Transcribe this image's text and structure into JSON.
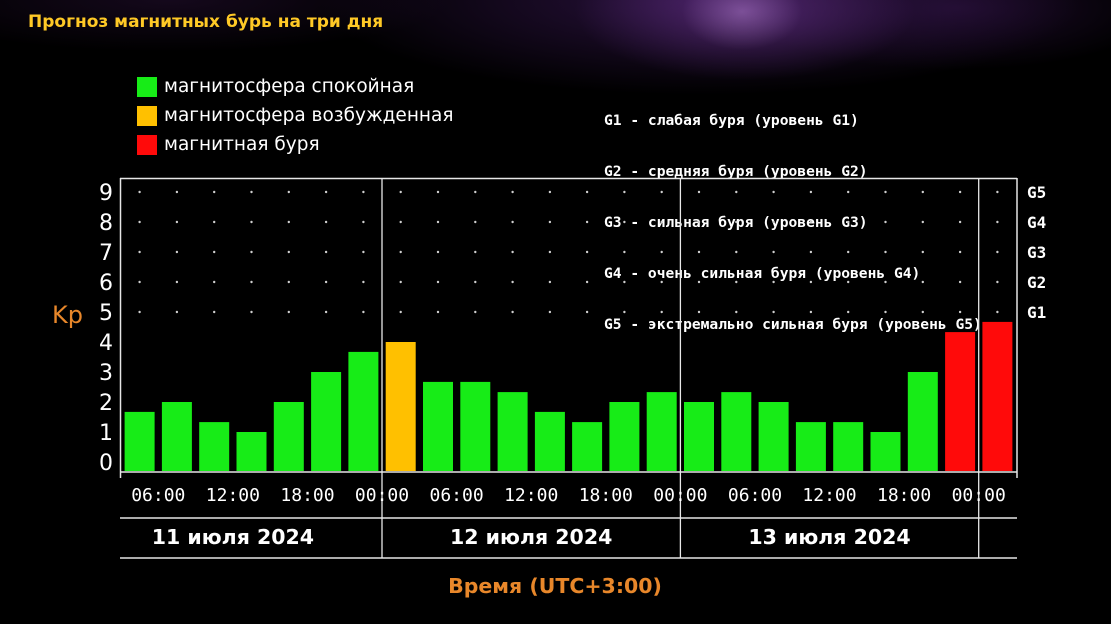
{
  "chart_data": {
    "type": "bar",
    "title": "Прогноз магнитных бурь на три дня",
    "ylabel": "Kp",
    "xlabel": "Время (UTC+3:00)",
    "ylim": [
      0,
      9
    ],
    "yticks": [
      "0",
      "1",
      "2",
      "3",
      "4",
      "5",
      "6",
      "7",
      "8",
      "9"
    ],
    "y2ticks": [
      {
        "label": "G1",
        "kp": 5
      },
      {
        "label": "G2",
        "kp": 6
      },
      {
        "label": "G3",
        "kp": 7
      },
      {
        "label": "G4",
        "kp": 8
      },
      {
        "label": "G5",
        "kp": 9
      }
    ],
    "grid": true,
    "legend_position": "top-left",
    "legend": [
      {
        "label": "магнитосфера спокойная",
        "color": "#17ec17"
      },
      {
        "label": "магнитосфера возбужденная",
        "color": "#ffc000"
      },
      {
        "label": "магнитная буря",
        "color": "#ff0a0a"
      }
    ],
    "storm_scale": [
      "G1 - слабая буря (уровень G1)",
      "G2 - средняя буря (уровень G2)",
      "G3 - сильная буря (уровень G3)",
      "G4 - очень сильная буря (уровень G4)",
      "G5 - экстремально сильная буря (уровень G5)"
    ],
    "xlim": [
      "2024-07-11T03:00",
      "2024-07-14T03:00"
    ],
    "xticks": [
      {
        "t": "2024-07-11T06:00",
        "label": "06:00"
      },
      {
        "t": "2024-07-11T12:00",
        "label": "12:00"
      },
      {
        "t": "2024-07-11T18:00",
        "label": "18:00"
      },
      {
        "t": "2024-07-12T00:00",
        "label": "00:00"
      },
      {
        "t": "2024-07-12T06:00",
        "label": "06:00"
      },
      {
        "t": "2024-07-12T12:00",
        "label": "12:00"
      },
      {
        "t": "2024-07-12T18:00",
        "label": "18:00"
      },
      {
        "t": "2024-07-13T00:00",
        "label": "00:00"
      },
      {
        "t": "2024-07-13T06:00",
        "label": "06:00"
      },
      {
        "t": "2024-07-13T12:00",
        "label": "12:00"
      },
      {
        "t": "2024-07-13T18:00",
        "label": "18:00"
      },
      {
        "t": "2024-07-14T00:00",
        "label": "00:00"
      }
    ],
    "day_labels": [
      {
        "date": "2024-07-11",
        "label": "11 июля 2024"
      },
      {
        "date": "2024-07-12",
        "label": "12 июля 2024"
      },
      {
        "date": "2024-07-13",
        "label": "13 июля 2024"
      }
    ],
    "x": [
      "2024-07-11T03:00",
      "2024-07-11T06:00",
      "2024-07-11T09:00",
      "2024-07-11T12:00",
      "2024-07-11T15:00",
      "2024-07-11T18:00",
      "2024-07-11T21:00",
      "2024-07-12T00:00",
      "2024-07-12T03:00",
      "2024-07-12T06:00",
      "2024-07-12T09:00",
      "2024-07-12T12:00",
      "2024-07-12T15:00",
      "2024-07-12T18:00",
      "2024-07-12T21:00",
      "2024-07-13T00:00",
      "2024-07-13T03:00",
      "2024-07-13T06:00",
      "2024-07-13T09:00",
      "2024-07-13T12:00",
      "2024-07-13T15:00",
      "2024-07-13T18:00",
      "2024-07-13T21:00",
      "2024-07-14T00:00"
    ],
    "values": [
      1.67,
      2,
      1.33,
      1,
      2,
      3,
      3.67,
      4,
      2.67,
      2.67,
      2.33,
      1.67,
      1.33,
      2,
      2.33,
      2,
      2.33,
      2,
      1.33,
      1.33,
      1,
      3,
      4.33,
      4.67
    ],
    "state": [
      0,
      0,
      0,
      0,
      0,
      0,
      0,
      1,
      0,
      0,
      0,
      0,
      0,
      0,
      0,
      0,
      0,
      0,
      0,
      0,
      0,
      0,
      2,
      2
    ]
  }
}
